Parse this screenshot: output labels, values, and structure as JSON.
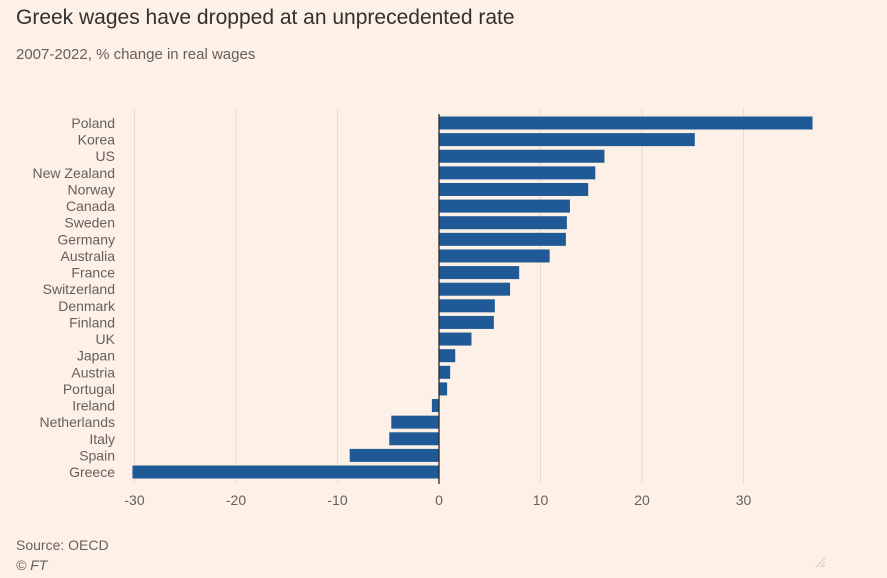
{
  "header": {
    "title": "Greek wages have dropped at an unprecedented rate",
    "subtitle": "2007-2022, % change in real wages"
  },
  "footer": {
    "source": "Source: OECD",
    "brand": "© FT"
  },
  "colors": {
    "bar": "#1f5a96",
    "background": "#fdf0e6",
    "grid": "#e8dcd2",
    "zero_line": "#2a2a2a",
    "label": "#66605c"
  },
  "chart_data": {
    "type": "bar",
    "orientation": "horizontal",
    "categories": [
      "Poland",
      "Korea",
      "US",
      "New Zealand",
      "Norway",
      "Canada",
      "Sweden",
      "Germany",
      "Australia",
      "France",
      "Switzerland",
      "Denmark",
      "Finland",
      "UK",
      "Japan",
      "Austria",
      "Portugal",
      "Ireland",
      "Netherlands",
      "Italy",
      "Spain",
      "Greece"
    ],
    "values": [
      36.8,
      25.2,
      16.3,
      15.4,
      14.7,
      12.9,
      12.6,
      12.5,
      10.9,
      7.9,
      7.0,
      5.5,
      5.4,
      3.2,
      1.6,
      1.1,
      0.8,
      -0.7,
      -4.7,
      -4.9,
      -8.8,
      -30.2
    ],
    "xlim": [
      -30,
      37
    ],
    "xticks": [
      -30,
      -20,
      -10,
      0,
      10,
      20,
      30
    ],
    "grid": true
  }
}
